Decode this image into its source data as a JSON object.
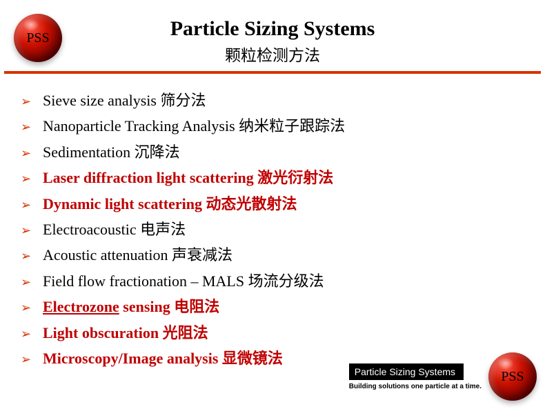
{
  "brand": {
    "logo_text": "PSS",
    "accent_color": "#d63200",
    "highlight_color": "#c00000"
  },
  "header": {
    "title": "Particle Sizing Systems",
    "subtitle": "颗粒检测方法"
  },
  "items": [
    {
      "text": " Sieve size analysis 筛分法",
      "highlight": false
    },
    {
      "text": "Nanoparticle Tracking Analysis 纳米粒子跟踪法",
      "highlight": false
    },
    {
      "text": "Sedimentation 沉降法",
      "highlight": false
    },
    {
      "text": "Laser diffraction light scattering 激光衍射法",
      "highlight": true
    },
    {
      "text": "Dynamic light scattering 动态光散射法",
      "highlight": true
    },
    {
      "text": "Electroacoustic 电声法",
      "highlight": false
    },
    {
      "text": "Acoustic attenuation 声衰减法",
      "highlight": false
    },
    {
      "text": "Field flow fractionation – MALS 场流分级法",
      "highlight": false
    },
    {
      "pre": "Electrozone",
      "post": " sensing 电阻法",
      "highlight": true,
      "underline_pre": true
    },
    {
      "text": "Light obscuration 光阻法",
      "highlight": true
    },
    {
      "text": "Microscopy/Image analysis 显微镜法",
      "highlight": true
    }
  ],
  "footer": {
    "brand_bar": "Particle Sizing Systems",
    "tagline": "Building solutions one particle at a time."
  }
}
